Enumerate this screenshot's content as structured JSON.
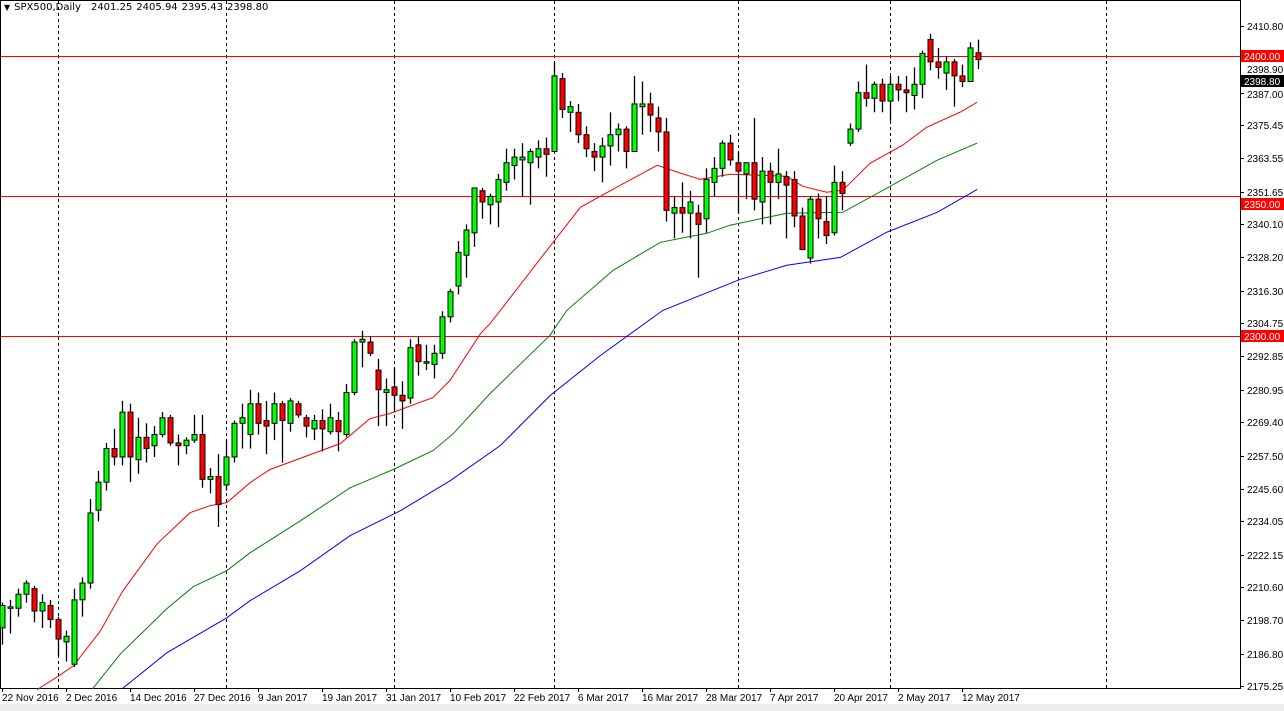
{
  "header": {
    "symbol_period": "SPX500,Daily",
    "open": "2401.25",
    "high": "2405.94",
    "low": "2395.43",
    "close": "2398.80"
  },
  "chart_data": {
    "type": "candlestick",
    "title": "SPX500,Daily",
    "ylim": [
      2175.25,
      2410.8
    ],
    "y_ticks": [
      "2410.80",
      "2398.90",
      "2387.00",
      "2375.45",
      "2363.55",
      "2351.65",
      "2340.10",
      "2328.20",
      "2316.30",
      "2304.75",
      "2292.85",
      "2280.95",
      "2269.40",
      "2257.50",
      "2245.60",
      "2234.05",
      "2222.15",
      "2210.60",
      "2198.70",
      "2186.80",
      "2175.25"
    ],
    "x_labels": [
      {
        "bar": 0,
        "label": "22 Nov 2016"
      },
      {
        "bar": 8,
        "label": "2 Dec 2016"
      },
      {
        "bar": 16,
        "label": "14 Dec 2016"
      },
      {
        "bar": 24,
        "label": "27 Dec 2016"
      },
      {
        "bar": 32,
        "label": "9 Jan 2017"
      },
      {
        "bar": 40,
        "label": "19 Jan 2017"
      },
      {
        "bar": 48,
        "label": "31 Jan 2017"
      },
      {
        "bar": 56,
        "label": "10 Feb 2017"
      },
      {
        "bar": 64,
        "label": "22 Feb 2017"
      },
      {
        "bar": 72,
        "label": "6 Mar 2017"
      },
      {
        "bar": 80,
        "label": "16 Mar 2017"
      },
      {
        "bar": 88,
        "label": "28 Mar 2017"
      },
      {
        "bar": 96,
        "label": "7 Apr 2017"
      },
      {
        "bar": 104,
        "label": "20 Apr 2017"
      },
      {
        "bar": 112,
        "label": "2 May 2017"
      },
      {
        "bar": 120,
        "label": "12 May 2017"
      }
    ],
    "period_separators": [
      7,
      28,
      49,
      69,
      92,
      111,
      138
    ],
    "horizontal_levels": [
      {
        "price": 2400,
        "label": "2400.00",
        "color": "#ff0000"
      },
      {
        "price": 2350,
        "label": "2350.00",
        "color": "#ff0000"
      },
      {
        "price": 2300,
        "label": "2300.00",
        "color": "#ff0000"
      }
    ],
    "current_price": {
      "price": 2398.8,
      "label": "2398.80"
    },
    "candles": [
      [
        2196,
        2205,
        2190,
        2204
      ],
      [
        2203,
        2206,
        2194,
        2203.5
      ],
      [
        2203,
        2210,
        2200,
        2208
      ],
      [
        2208,
        2213,
        2205,
        2212
      ],
      [
        2210,
        2211,
        2198,
        2202
      ],
      [
        2202,
        2208,
        2196,
        2205
      ],
      [
        2204,
        2206,
        2196,
        2199
      ],
      [
        2199,
        2200,
        2186,
        2192
      ],
      [
        2191,
        2195,
        2184,
        2193
      ],
      [
        2183,
        2210,
        2182,
        2206
      ],
      [
        2206,
        2214,
        2200,
        2212
      ],
      [
        2212,
        2242,
        2210,
        2237
      ],
      [
        2238,
        2252,
        2234,
        2248
      ],
      [
        2248,
        2262,
        2245,
        2260
      ],
      [
        2260,
        2267,
        2254,
        2257
      ],
      [
        2257,
        2277,
        2254,
        2273
      ],
      [
        2273,
        2276,
        2248,
        2257
      ],
      [
        2256,
        2271,
        2251,
        2264
      ],
      [
        2264,
        2269,
        2255,
        2260
      ],
      [
        2261,
        2268,
        2257,
        2265
      ],
      [
        2265,
        2273,
        2264,
        2271
      ],
      [
        2271,
        2272,
        2261,
        2262
      ],
      [
        2262,
        2265,
        2254,
        2261
      ],
      [
        2261,
        2264,
        2258,
        2263
      ],
      [
        2263,
        2272,
        2262,
        2265
      ],
      [
        2265,
        2272,
        2246,
        2249
      ],
      [
        2249,
        2253,
        2244,
        2250
      ],
      [
        2250,
        2258,
        2232,
        2240
      ],
      [
        2247,
        2263,
        2245,
        2257
      ],
      [
        2257,
        2270,
        2255,
        2269
      ],
      [
        2269,
        2276,
        2260,
        2271
      ],
      [
        2265,
        2281,
        2260,
        2276
      ],
      [
        2276,
        2280,
        2265,
        2269
      ],
      [
        2270,
        2277,
        2258,
        2268
      ],
      [
        2269,
        2280,
        2263,
        2276
      ],
      [
        2276,
        2277,
        2255,
        2270
      ],
      [
        2269,
        2278,
        2266,
        2277
      ],
      [
        2276,
        2277,
        2271,
        2272
      ],
      [
        2271,
        2272,
        2264,
        2268
      ],
      [
        2267,
        2272,
        2263,
        2270
      ],
      [
        2270,
        2274,
        2259,
        2267
      ],
      [
        2266,
        2276,
        2265,
        2271
      ],
      [
        2270,
        2273,
        2259,
        2266
      ],
      [
        2265,
        2283,
        2264,
        2280
      ],
      [
        2280,
        2299,
        2279,
        2298
      ],
      [
        2298,
        2302,
        2289,
        2299
      ],
      [
        2298,
        2300,
        2293,
        2294
      ],
      [
        2288,
        2292,
        2268,
        2281
      ],
      [
        2280,
        2285,
        2268,
        2281
      ],
      [
        2282,
        2289,
        2273,
        2279
      ],
      [
        2279,
        2284,
        2267,
        2277
      ],
      [
        2278,
        2299,
        2276,
        2296
      ],
      [
        2297,
        2300,
        2286,
        2291
      ],
      [
        2291,
        2297,
        2288,
        2291
      ],
      [
        2290,
        2297,
        2285,
        2294
      ],
      [
        2294,
        2309,
        2292,
        2307
      ],
      [
        2307,
        2317,
        2305,
        2316
      ],
      [
        2318,
        2334,
        2315,
        2330
      ],
      [
        2329,
        2340,
        2321,
        2338
      ],
      [
        2337,
        2353,
        2332,
        2353
      ],
      [
        2352,
        2353,
        2342,
        2348
      ],
      [
        2347,
        2351,
        2340,
        2350
      ],
      [
        2348,
        2358,
        2339,
        2356
      ],
      [
        2355,
        2367,
        2352,
        2362
      ],
      [
        2361,
        2367,
        2356,
        2364
      ],
      [
        2363,
        2369,
        2350,
        2364
      ],
      [
        2362,
        2367,
        2347,
        2366
      ],
      [
        2364,
        2370,
        2360,
        2367
      ],
      [
        2367,
        2371,
        2357,
        2365
      ],
      [
        2366,
        2398,
        2366,
        2393
      ],
      [
        2392,
        2394,
        2378,
        2381
      ],
      [
        2380,
        2384,
        2373,
        2382
      ],
      [
        2380,
        2383,
        2369,
        2372
      ],
      [
        2372,
        2375,
        2364,
        2367
      ],
      [
        2366,
        2369,
        2359,
        2364
      ],
      [
        2364,
        2371,
        2355,
        2368
      ],
      [
        2368,
        2380,
        2361,
        2372
      ],
      [
        2372,
        2376,
        2366,
        2374
      ],
      [
        2374,
        2375,
        2360,
        2366
      ],
      [
        2366,
        2393,
        2366,
        2383
      ],
      [
        2382,
        2391,
        2372,
        2383
      ],
      [
        2383,
        2387,
        2373,
        2379
      ],
      [
        2378,
        2382,
        2366,
        2373
      ],
      [
        2373,
        2378,
        2341,
        2345
      ],
      [
        2344,
        2350,
        2335,
        2346
      ],
      [
        2346,
        2355,
        2337,
        2344
      ],
      [
        2344,
        2352,
        2335,
        2348
      ],
      [
        2344,
        2347,
        2321,
        2340
      ],
      [
        2342,
        2360,
        2337,
        2356
      ],
      [
        2355,
        2364,
        2350,
        2360
      ],
      [
        2360,
        2370,
        2357,
        2369
      ],
      [
        2369,
        2372,
        2361,
        2363
      ],
      [
        2362,
        2366,
        2344,
        2359
      ],
      [
        2358,
        2362,
        2349,
        2362
      ],
      [
        2362,
        2378,
        2345,
        2349
      ],
      [
        2348,
        2364,
        2340,
        2359
      ],
      [
        2359,
        2362,
        2340,
        2355
      ],
      [
        2355,
        2367,
        2349,
        2358
      ],
      [
        2357,
        2359,
        2335,
        2354
      ],
      [
        2356,
        2359,
        2339,
        2343
      ],
      [
        2343,
        2346,
        2331,
        2331
      ],
      [
        2328,
        2350,
        2326,
        2349
      ],
      [
        2349,
        2351,
        2335,
        2342
      ],
      [
        2341,
        2350,
        2333,
        2336
      ],
      [
        2337,
        2361,
        2336,
        2355
      ],
      [
        2355,
        2359,
        2345,
        2351
      ],
      [
        2369,
        2376,
        2368,
        2374
      ],
      [
        2374,
        2391,
        2373,
        2387
      ],
      [
        2387,
        2397,
        2382,
        2385
      ],
      [
        2385,
        2391,
        2380,
        2390
      ],
      [
        2390,
        2392,
        2380,
        2384
      ],
      [
        2384,
        2393,
        2377,
        2390
      ],
      [
        2390,
        2393,
        2384,
        2388
      ],
      [
        2388,
        2393,
        2380,
        2387
      ],
      [
        2386,
        2396,
        2381,
        2390
      ],
      [
        2390,
        2402,
        2385,
        2401
      ],
      [
        2406,
        2408,
        2395,
        2398
      ],
      [
        2398,
        2403,
        2392,
        2396
      ],
      [
        2394,
        2400,
        2388,
        2398
      ],
      [
        2398,
        2399,
        2382,
        2393
      ],
      [
        2393,
        2397,
        2389,
        2391
      ],
      [
        2391,
        2405,
        2391,
        2403
      ],
      [
        2401.25,
        2405.94,
        2395.43,
        2398.8
      ]
    ],
    "moving_averages": [
      {
        "name": "ma-red",
        "color": "#ff0000",
        "points": [
          [
            4.4,
            2174
          ],
          [
            6.9,
            2178.5
          ],
          [
            8.9,
            2182.4
          ],
          [
            12.3,
            2194.9
          ],
          [
            15.1,
            2209.2
          ],
          [
            19.4,
            2226
          ],
          [
            23.5,
            2237.1
          ],
          [
            26,
            2239.6
          ],
          [
            28.1,
            2240.7
          ],
          [
            31,
            2247.8
          ],
          [
            33.5,
            2252.5
          ],
          [
            42.3,
            2261.8
          ],
          [
            46,
            2270.7
          ],
          [
            48.5,
            2272.5
          ],
          [
            53.9,
            2278.2
          ],
          [
            56,
            2284.3
          ],
          [
            59.8,
            2301
          ],
          [
            61,
            2304.6
          ],
          [
            62.3,
            2309.3
          ],
          [
            68.1,
            2330.7
          ],
          [
            72.3,
            2346.1
          ],
          [
            77.3,
            2354
          ],
          [
            81.9,
            2361.1
          ],
          [
            84.8,
            2358.3
          ],
          [
            87.3,
            2356.1
          ],
          [
            91,
            2357.9
          ],
          [
            98.1,
            2357.2
          ],
          [
            100.1,
            2353.6
          ],
          [
            103.1,
            2351.5
          ],
          [
            105.1,
            2352.2
          ],
          [
            108.5,
            2361.8
          ],
          [
            112.6,
            2368.3
          ],
          [
            115.6,
            2374.7
          ],
          [
            119.8,
            2380.1
          ],
          [
            121.9,
            2383.6
          ]
        ]
      },
      {
        "name": "ma-green",
        "color": "#008000",
        "points": [
          [
            11.3,
            2174.2
          ],
          [
            14.8,
            2186.7
          ],
          [
            20.6,
            2202.8
          ],
          [
            23.9,
            2210.7
          ],
          [
            28.1,
            2216.4
          ],
          [
            31,
            2222.8
          ],
          [
            37.3,
            2234.2
          ],
          [
            43.5,
            2246
          ],
          [
            48.9,
            2252.5
          ],
          [
            53.9,
            2259.3
          ],
          [
            56.4,
            2265.3
          ],
          [
            61,
            2279.6
          ],
          [
            68.5,
            2300.4
          ],
          [
            70.6,
            2309.3
          ],
          [
            76.4,
            2323.6
          ],
          [
            82.3,
            2333.6
          ],
          [
            88.1,
            2336.8
          ],
          [
            91,
            2339.7
          ],
          [
            98.1,
            2344
          ],
          [
            105.1,
            2344.3
          ],
          [
            110.6,
            2352.9
          ],
          [
            116.9,
            2362.9
          ],
          [
            121.9,
            2369
          ]
        ]
      },
      {
        "name": "ma-blue",
        "color": "#0000ff",
        "points": [
          [
            15,
            2174.2
          ],
          [
            20.6,
            2187.1
          ],
          [
            28.1,
            2199.6
          ],
          [
            31,
            2205.7
          ],
          [
            37.3,
            2216.4
          ],
          [
            43.5,
            2228.9
          ],
          [
            49.8,
            2237.8
          ],
          [
            56,
            2248.5
          ],
          [
            62.3,
            2261.1
          ],
          [
            68.5,
            2278.9
          ],
          [
            74.8,
            2293.2
          ],
          [
            82.6,
            2309.3
          ],
          [
            92.3,
            2320.4
          ],
          [
            98.1,
            2325.4
          ],
          [
            104.8,
            2328.2
          ],
          [
            110.6,
            2337.2
          ],
          [
            116.9,
            2344.3
          ],
          [
            121.9,
            2352.5
          ]
        ]
      }
    ],
    "colors": {
      "bull": "#00ff00",
      "bear": "#ff0000",
      "wick": "#000000",
      "grid": "#000000"
    }
  }
}
